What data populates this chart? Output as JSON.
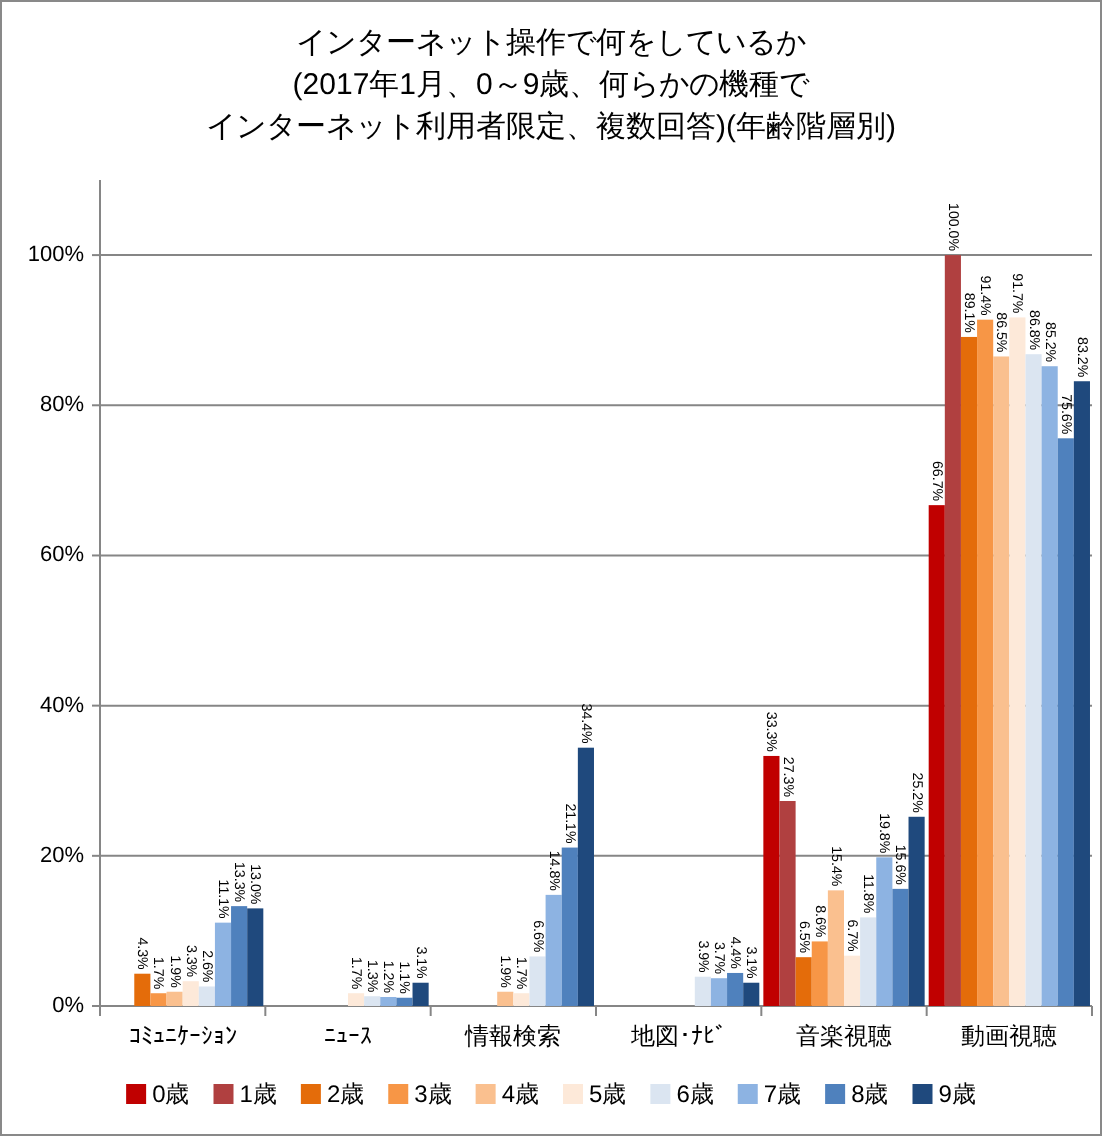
{
  "chart_data": {
    "type": "bar",
    "title": "インターネット操作で何をしているか",
    "subtitle": "(2017年1月、0～9歳、何らかの機種でインターネット利用者限定、複数回答)(年齢階層別)",
    "categories": [
      "ｺﾐｭﾆｹｰｼｮﾝ",
      "ﾆｭｰｽ",
      "情報検索",
      "地図･ﾅﾋﾞ",
      "音楽視聴",
      "動画視聴"
    ],
    "series": [
      {
        "name": "0歳",
        "color": "#c00000",
        "values": [
          null,
          null,
          null,
          null,
          33.3,
          66.7
        ],
        "value_labels": [
          null,
          null,
          null,
          null,
          "33.3%",
          "66.7%"
        ]
      },
      {
        "name": "1歳",
        "color": "#b04040",
        "values": [
          null,
          null,
          null,
          null,
          27.3,
          100.0
        ],
        "value_labels": [
          null,
          null,
          null,
          null,
          "27.3%",
          "100.0%"
        ]
      },
      {
        "name": "2歳",
        "color": "#e46c0a",
        "values": [
          4.3,
          null,
          null,
          null,
          6.5,
          89.1
        ],
        "value_labels": [
          "4.3%",
          null,
          null,
          null,
          "6.5%",
          "89.1%"
        ]
      },
      {
        "name": "3歳",
        "color": "#f79646",
        "values": [
          1.7,
          null,
          null,
          null,
          8.6,
          91.4
        ],
        "value_labels": [
          "1.7%",
          null,
          null,
          null,
          "8.6%",
          "91.4%"
        ]
      },
      {
        "name": "4歳",
        "color": "#fac08f",
        "values": [
          1.9,
          null,
          1.9,
          null,
          15.4,
          86.5
        ],
        "value_labels": [
          "1.9%",
          null,
          "1.9%",
          null,
          "15.4%",
          "86.5%"
        ]
      },
      {
        "name": "5歳",
        "color": "#fde9d9",
        "values": [
          3.3,
          1.7,
          1.7,
          null,
          6.7,
          91.7
        ],
        "value_labels": [
          "3.3%",
          "1.7%",
          "1.7%",
          null,
          "6.7%",
          "91.7%"
        ]
      },
      {
        "name": "6歳",
        "color": "#dbe5f1",
        "values": [
          2.6,
          1.3,
          6.6,
          3.9,
          11.8,
          86.8
        ],
        "value_labels": [
          "2.6%",
          "1.3%",
          "6.6%",
          "3.9%",
          "11.8%",
          "86.8%"
        ]
      },
      {
        "name": "7歳",
        "color": "#8db3e2",
        "values": [
          11.1,
          1.2,
          14.8,
          3.7,
          19.8,
          85.2
        ],
        "value_labels": [
          "11.1%",
          "1.2%",
          "14.8%",
          "3.7%",
          "19.8%",
          "85.2%"
        ]
      },
      {
        "name": "8歳",
        "color": "#4f81bd",
        "values": [
          13.3,
          1.1,
          21.1,
          4.4,
          15.6,
          75.6
        ],
        "value_labels": [
          "13.3%",
          "1.1%",
          "21.1%",
          "4.4%",
          "15.6%",
          "75.6%"
        ]
      },
      {
        "name": "9歳",
        "color": "#1f497d",
        "values": [
          13.0,
          3.1,
          34.4,
          3.1,
          25.2,
          83.2
        ],
        "value_labels": [
          "13.0%",
          "3.1%",
          "34.4%",
          "3.1%",
          "25.2%",
          "83.2%"
        ]
      }
    ],
    "ylim": [
      0,
      110
    ],
    "yticks": [
      {
        "value": 0,
        "label": "0%"
      },
      {
        "value": 20,
        "label": "20%"
      },
      {
        "value": 40,
        "label": "40%"
      },
      {
        "value": 60,
        "label": "60%"
      },
      {
        "value": 80,
        "label": "80%"
      },
      {
        "value": 100,
        "label": "100%"
      }
    ],
    "grid": "y",
    "legend": "bottom"
  }
}
